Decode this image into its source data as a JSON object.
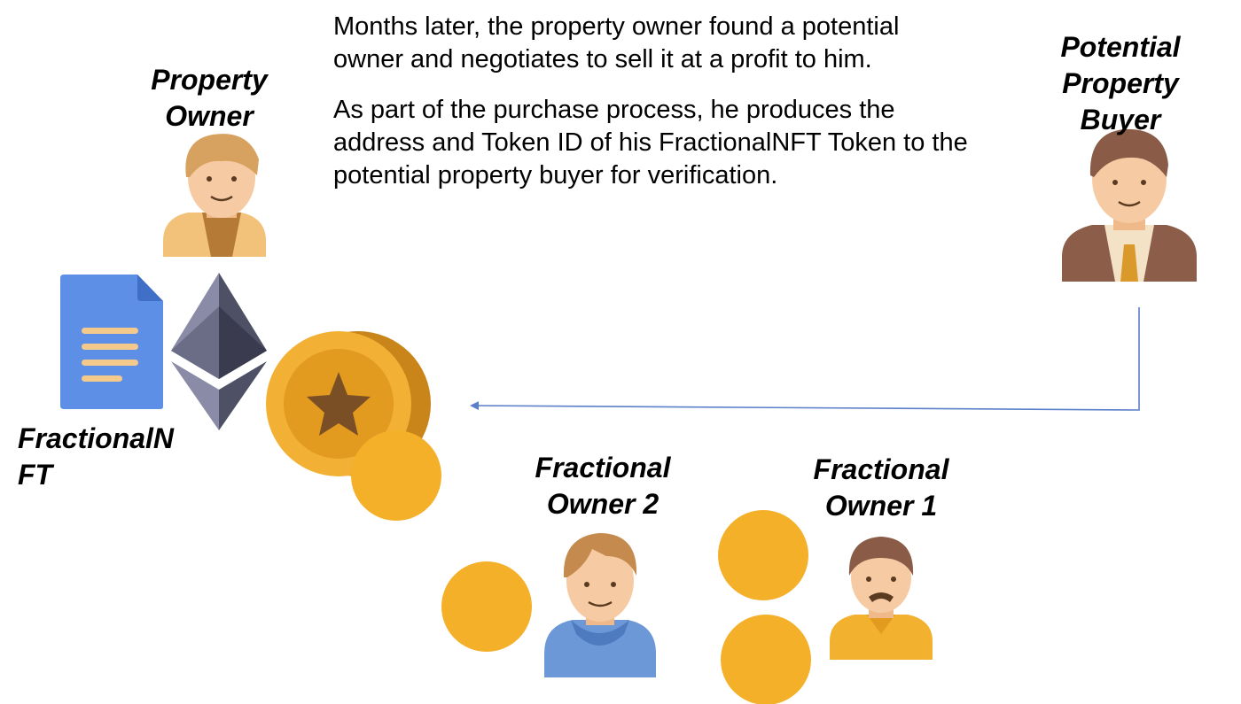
{
  "narrative": {
    "paragraph_1": "Months later, the property owner found a potential owner and negotiates to sell it at a profit to him.",
    "paragraph_2": "As part of the purchase process, he produces the address and Token ID of his FractionalNFT Token to the potential property buyer for verification."
  },
  "actors": {
    "property_owner": {
      "line_1": "Property",
      "line_2": "Owner"
    },
    "potential_buyer": {
      "line_1": "Potential",
      "line_2": "Property",
      "line_3": "Buyer"
    },
    "fractional_owner_2": {
      "line_1": "Fractional",
      "line_2": "Owner 2"
    },
    "fractional_owner_1": {
      "line_1": "Fractional",
      "line_2": "Owner 1"
    }
  },
  "token": {
    "line_1": "FractionalN",
    "line_2": "FT"
  },
  "colors": {
    "coin": "#F5B02A",
    "document": "#5E8FE6",
    "ether_dark": "#4E5066",
    "ether_light": "#8A8BA6",
    "connector": "#5B7FC9"
  }
}
